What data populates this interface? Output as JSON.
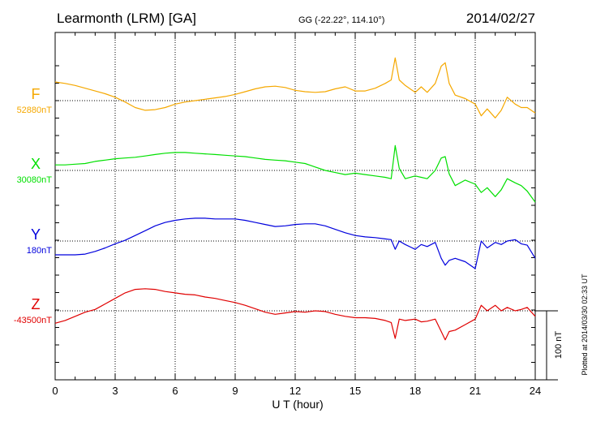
{
  "header": {
    "station": "Learmonth (LRM)  [GA]",
    "coords": "GG (-22.22°, 114.10°)",
    "date": "2014/02/27"
  },
  "plotted_note": "Plotted at 2014/03/30 02:33 UT",
  "scale_label": "100 nT",
  "colors": {
    "F": "#f5a800",
    "X": "#00e000",
    "Y": "#0000dd",
    "Z": "#e00000",
    "axis": "#000000",
    "grid": "#000000"
  },
  "chart_data": {
    "type": "line",
    "title": "Learmonth (LRM)  [GA]",
    "xlabel": "U T (hour)",
    "ylabel": "",
    "xlim": [
      0,
      24
    ],
    "xticks": [
      0,
      3,
      6,
      9,
      12,
      15,
      18,
      21,
      24
    ],
    "tick_labels": [
      "0",
      "3",
      "6",
      "9",
      "12",
      "15",
      "18",
      "21",
      "24"
    ],
    "grid": true,
    "y_units": "nT",
    "scale_bar_nT": 100,
    "series": [
      {
        "name": "F",
        "baseline_label": "52880nT",
        "baseline_nT": 52880,
        "color": "#f5a800",
        "x": [
          0,
          0.5,
          1,
          1.5,
          2,
          2.5,
          3,
          3.5,
          4,
          4.5,
          5,
          5.5,
          6,
          6.5,
          7,
          7.5,
          8,
          8.5,
          9,
          9.5,
          10,
          10.5,
          11,
          11.5,
          12,
          12.5,
          13,
          13.5,
          14,
          14.5,
          15,
          15.5,
          16,
          16.5,
          16.8,
          17,
          17.2,
          17.5,
          18,
          18.3,
          18.6,
          19,
          19.3,
          19.5,
          19.7,
          20,
          20.5,
          21,
          21.3,
          21.6,
          22,
          22.3,
          22.6,
          23,
          23.3,
          23.6,
          24
        ],
        "values": [
          27,
          25,
          22,
          18,
          14,
          10,
          5,
          -2,
          -10,
          -14,
          -13,
          -10,
          -5,
          -2,
          0,
          2,
          4,
          6,
          9,
          13,
          17,
          20,
          21,
          19,
          15,
          13,
          12,
          13,
          17,
          20,
          14,
          14,
          18,
          25,
          30,
          62,
          30,
          22,
          12,
          20,
          12,
          25,
          50,
          55,
          25,
          8,
          3,
          -5,
          -22,
          -12,
          -25,
          -14,
          5,
          -5,
          -10,
          -10,
          -18
        ]
      },
      {
        "name": "X",
        "baseline_label": "30080nT",
        "baseline_nT": 30080,
        "color": "#00e000",
        "x": [
          0,
          0.5,
          1,
          1.5,
          2,
          2.5,
          3,
          3.5,
          4,
          4.5,
          5,
          5.5,
          6,
          6.5,
          7,
          7.5,
          8,
          8.5,
          9,
          9.5,
          10,
          10.5,
          11,
          11.5,
          12,
          12.5,
          13,
          13.5,
          14,
          14.5,
          15,
          15.5,
          16,
          16.5,
          16.8,
          17,
          17.2,
          17.5,
          18,
          18.3,
          18.6,
          19,
          19.3,
          19.5,
          19.7,
          20,
          20.5,
          21,
          21.3,
          21.6,
          22,
          22.3,
          22.6,
          23,
          23.3,
          23.6,
          24
        ],
        "values": [
          8,
          8,
          9,
          10,
          13,
          15,
          17,
          18,
          19,
          21,
          23,
          25,
          26,
          26,
          25,
          24,
          23,
          22,
          21,
          20,
          18,
          16,
          15,
          14,
          12,
          10,
          5,
          0,
          -3,
          -6,
          -4,
          -6,
          -8,
          -10,
          -12,
          36,
          3,
          -12,
          -8,
          -10,
          -12,
          0,
          18,
          20,
          -5,
          -22,
          -14,
          -20,
          -32,
          -25,
          -38,
          -28,
          -12,
          -18,
          -22,
          -30,
          -46
        ]
      },
      {
        "name": "Y",
        "baseline_label": "180nT",
        "baseline_nT": 180,
        "color": "#0000dd",
        "x": [
          0,
          0.5,
          1,
          1.5,
          2,
          2.5,
          3,
          3.5,
          4,
          4.5,
          5,
          5.5,
          6,
          6.5,
          7,
          7.5,
          8,
          8.5,
          9,
          9.5,
          10,
          10.5,
          11,
          11.5,
          12,
          12.5,
          13,
          13.5,
          14,
          14.5,
          15,
          15.5,
          16,
          16.5,
          16.8,
          17,
          17.2,
          17.5,
          18,
          18.3,
          18.6,
          19,
          19.3,
          19.5,
          19.7,
          20,
          20.5,
          21,
          21.3,
          21.6,
          22,
          22.3,
          22.6,
          23,
          23.3,
          23.6,
          24
        ],
        "values": [
          -20,
          -20,
          -20,
          -19,
          -15,
          -10,
          -4,
          1,
          8,
          15,
          22,
          27,
          30,
          32,
          33,
          33,
          32,
          32,
          32,
          30,
          27,
          24,
          21,
          22,
          24,
          25,
          25,
          22,
          17,
          12,
          8,
          6,
          5,
          3,
          2,
          -12,
          0,
          -5,
          -12,
          -5,
          -8,
          -2,
          -25,
          -35,
          -28,
          -25,
          -30,
          -40,
          0,
          -10,
          -2,
          -5,
          0,
          2,
          -4,
          -6,
          -25
        ]
      },
      {
        "name": "Z",
        "baseline_label": "-43500nT",
        "baseline_nT": -43500,
        "color": "#e00000",
        "x": [
          0,
          0.5,
          1,
          1.5,
          2,
          2.5,
          3,
          3.5,
          4,
          4.5,
          5,
          5.5,
          6,
          6.5,
          7,
          7.5,
          8,
          8.5,
          9,
          9.5,
          10,
          10.5,
          11,
          11.5,
          12,
          12.5,
          13,
          13.5,
          14,
          14.5,
          15,
          15.5,
          16,
          16.5,
          16.8,
          17,
          17.2,
          17.5,
          18,
          18.3,
          18.6,
          19,
          19.3,
          19.5,
          19.7,
          20,
          20.5,
          21,
          21.3,
          21.6,
          22,
          22.3,
          22.6,
          23,
          23.3,
          23.6,
          24
        ],
        "values": [
          -18,
          -14,
          -8,
          -2,
          2,
          10,
          18,
          26,
          31,
          32,
          31,
          28,
          26,
          24,
          23,
          20,
          18,
          15,
          12,
          8,
          3,
          -2,
          -5,
          -3,
          -1,
          -2,
          0,
          -1,
          -5,
          -8,
          -10,
          -10,
          -11,
          -14,
          -17,
          -40,
          -12,
          -14,
          -12,
          -16,
          -15,
          -12,
          -30,
          -42,
          -30,
          -28,
          -20,
          -12,
          8,
          0,
          8,
          0,
          5,
          0,
          2,
          5,
          -8
        ]
      }
    ]
  }
}
